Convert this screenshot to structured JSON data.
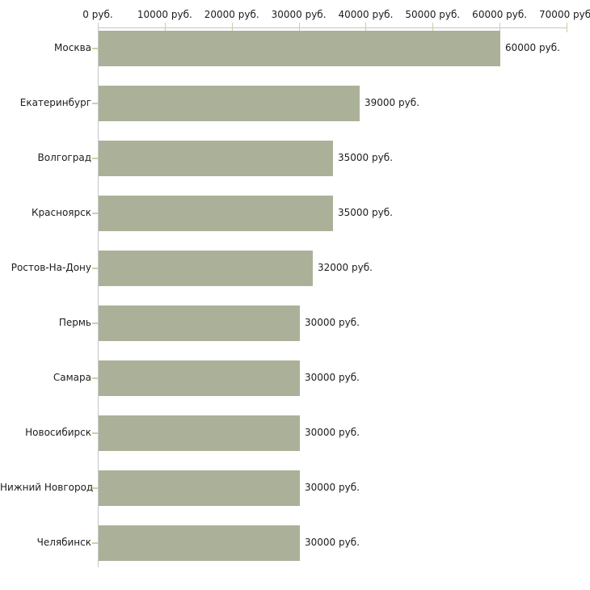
{
  "chart_data": {
    "type": "bar",
    "orientation": "horizontal",
    "title": "",
    "categories": [
      "Москва",
      "Екатеринбург",
      "Волгоград",
      "Красноярск",
      "Ростов-На-Дону",
      "Пермь",
      "Самара",
      "Новосибирск",
      "Нижний Новгород",
      "Челябинск"
    ],
    "values": [
      60000,
      39000,
      35000,
      35000,
      32000,
      30000,
      30000,
      30000,
      30000,
      30000
    ],
    "value_labels": [
      "60000 руб.",
      "39000 руб.",
      "35000 руб.",
      "35000 руб.",
      "32000 руб.",
      "30000 руб.",
      "30000 руб.",
      "30000 руб.",
      "30000 руб.",
      "30000 руб."
    ],
    "unit": "руб.",
    "x_ticks": [
      0,
      10000,
      20000,
      30000,
      40000,
      50000,
      60000,
      70000
    ],
    "x_tick_labels": [
      "0 руб.",
      "10000 руб.",
      "20000 руб.",
      "30000 руб.",
      "40000 руб.",
      "50000 руб.",
      "60000 руб.",
      "70000 руб."
    ],
    "xlim": [
      0,
      70000
    ],
    "grid": false,
    "legend": "none",
    "colors": {
      "bar": "#aab198",
      "axis": "#c6c6c6",
      "tick": "#d2cda4",
      "text": "#1c1c1c",
      "background": "#ffffff"
    }
  }
}
